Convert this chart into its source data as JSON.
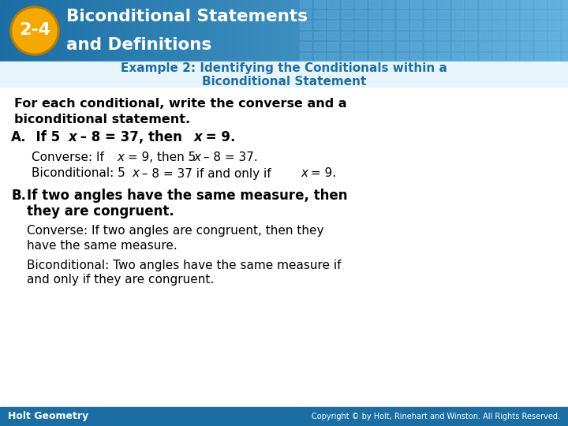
{
  "header_bg_left": "#1b6ea4",
  "header_bg_right": "#5bacd8",
  "header_grid_color": "#4a9fd4",
  "header_text_color": "#ffffff",
  "badge_fill": "#f5a900",
  "badge_stroke": "#b87e00",
  "badge_text": "2-4",
  "title_line1": "Biconditional Statements",
  "title_line2": "and Definitions",
  "example_color": "#1b6ea4",
  "example_line1": "Example 2: Identifying the Conditionals within a",
  "example_line2": "Biconditional Statement",
  "body_bg": "#ffffff",
  "intro_line1": "For each conditional, write the converse and a",
  "intro_line2": "biconditional statement.",
  "footer_bg": "#1b6ea4",
  "footer_left": "Holt Geometry",
  "footer_right": "Copyright © by Holt, Rinehart and Winston. All Rights Reserved.",
  "footer_text_color": "#ffffff"
}
